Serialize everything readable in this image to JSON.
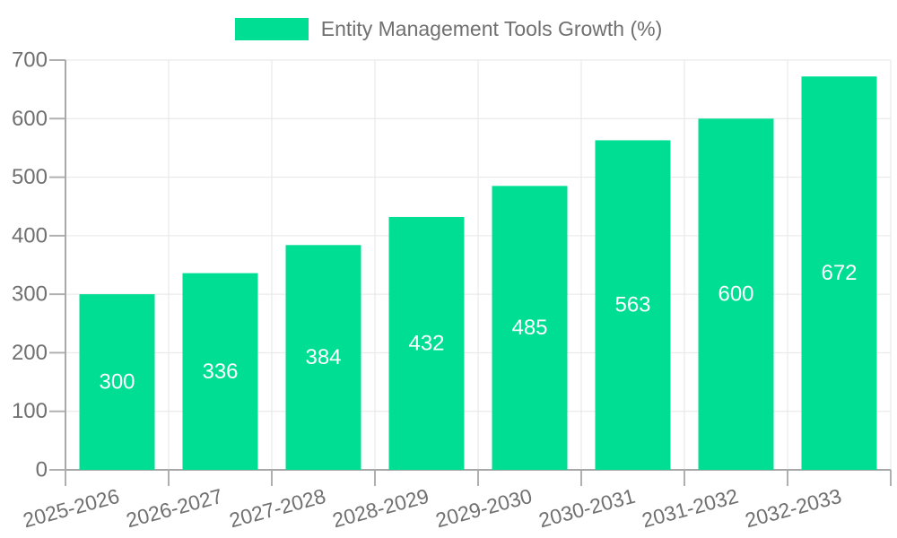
{
  "chart_data": {
    "type": "bar",
    "title": "Entity Management Tools Growth (%)",
    "series": [
      {
        "name": "Entity Management Tools Growth (%)",
        "values": [
          300,
          336,
          384,
          432,
          485,
          563,
          600,
          672
        ]
      }
    ],
    "categories": [
      "2025-2026",
      "2026-2027",
      "2027-2028",
      "2028-2029",
      "2029-2030",
      "2030-2031",
      "2031-2032",
      "2032-2033"
    ],
    "value_labels": [
      "300",
      "336",
      "384",
      "432",
      "485",
      "563",
      "600",
      "672"
    ],
    "ytick_labels": [
      "0",
      "100",
      "200",
      "300",
      "400",
      "500",
      "600",
      "700"
    ],
    "xlabel": "",
    "ylabel": "",
    "ylim": [
      0,
      700
    ],
    "ytick_step": 100,
    "grid": true,
    "legend_position": "top",
    "x_label_rotation": -15,
    "colors": {
      "bar": "#00DE94",
      "value_label": "#ffffff",
      "axis_text": "#707070",
      "grid_line": "#e6e6e6",
      "axis_line": "#a8a8a8",
      "tick_mark": "#b0b0b0",
      "background": "#ffffff"
    }
  }
}
